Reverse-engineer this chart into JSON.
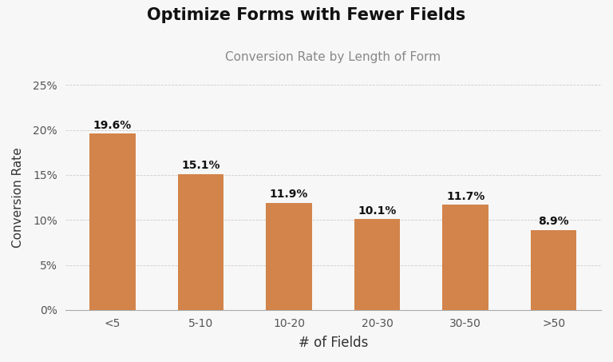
{
  "title": "Optimize Forms with Fewer Fields",
  "subtitle": "Conversion Rate by Length of Form",
  "xlabel": "# of Fields",
  "ylabel": "Conversion Rate",
  "categories": [
    "<5",
    "5-10",
    "10-20",
    "20-30",
    "30-50",
    ">50"
  ],
  "values": [
    19.6,
    15.1,
    11.9,
    10.1,
    11.7,
    8.9
  ],
  "bar_color": "#D2844A",
  "background_color": "#f7f7f7",
  "ylim": [
    0,
    25
  ],
  "yticks": [
    0,
    5,
    10,
    15,
    20,
    25
  ],
  "title_fontsize": 15,
  "subtitle_fontsize": 11,
  "xlabel_fontsize": 12,
  "ylabel_fontsize": 11,
  "tick_fontsize": 10,
  "bar_label_fontsize": 10
}
